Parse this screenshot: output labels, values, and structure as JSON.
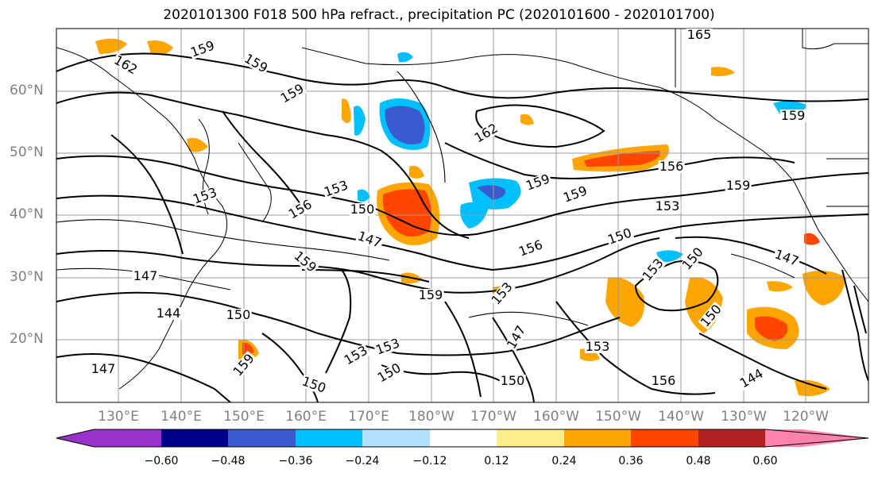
{
  "title": "2020101300 F018 500 hPa refract., precipitation PC (2020101600 - 2020101700)",
  "lat_labels": [
    "60°N",
    "50°N",
    "40°N",
    "30°N",
    "20°N"
  ],
  "lon_labels": [
    "130°E",
    "140°E",
    "150°E",
    "160°E",
    "170°E",
    "180°W",
    "170°W",
    "160°W",
    "150°W",
    "140°W",
    "130°W",
    "120°W"
  ],
  "contour_labels": [
    "162",
    "159",
    "159",
    "159",
    "153",
    "150",
    "147",
    "153",
    "156",
    "159",
    "162",
    "159",
    "159",
    "156",
    "153",
    "150",
    "156",
    "147",
    "153",
    "150",
    "159",
    "153",
    "147",
    "144",
    "150",
    "159",
    "153",
    "153",
    "150",
    "156",
    "150",
    "153",
    "147",
    "165",
    "159",
    "159",
    "144",
    "147",
    "150",
    "150"
  ],
  "colorbar": {
    "ticks": [
      "−0.60",
      "−0.48",
      "−0.36",
      "−0.24",
      "−0.12",
      "0.12",
      "0.24",
      "0.36",
      "0.48",
      "0.60"
    ],
    "colors": [
      "#9932cc",
      "#00008b",
      "#3a5bcd",
      "#00bfff",
      "#b0e2ff",
      "#ffffff",
      "#ffec8b",
      "#ffa500",
      "#ff4500",
      "#b22222",
      "#ff82ab"
    ]
  }
}
